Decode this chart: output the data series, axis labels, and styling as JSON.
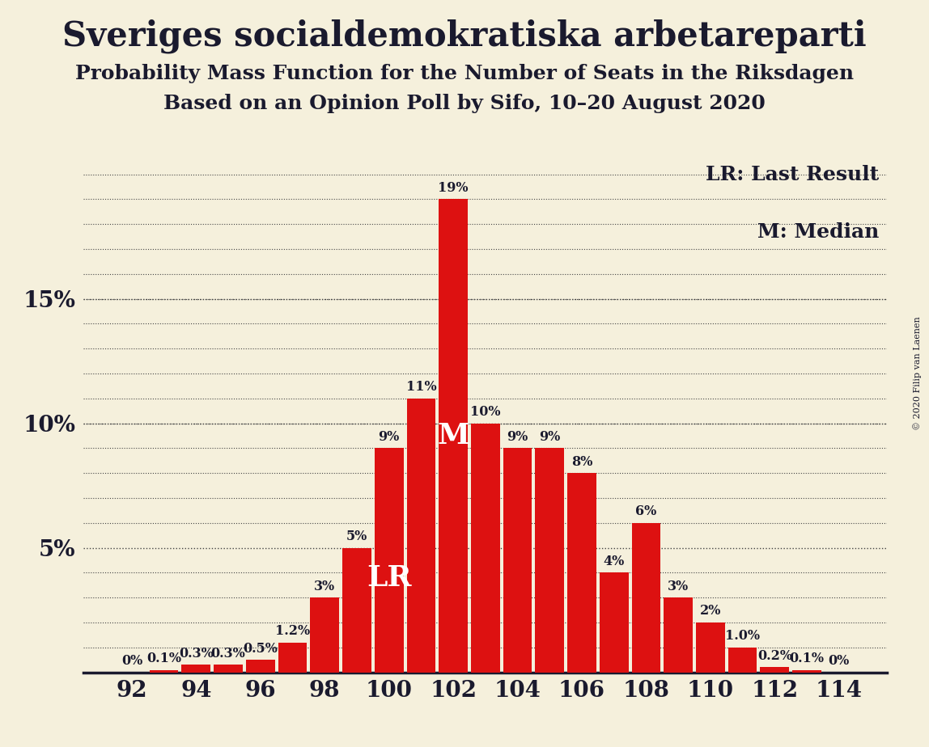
{
  "title": "Sveriges socialdemokratiska arbetareparti",
  "subtitle1": "Probability Mass Function for the Number of Seats in the Riksdagen",
  "subtitle2": "Based on an Opinion Poll by Sifo, 10–20 August 2020",
  "copyright": "© 2020 Filip van Laenen",
  "background_color": "#f5f0dc",
  "bar_color": "#dd1111",
  "text_color": "#1a1a2e",
  "seats": [
    92,
    93,
    94,
    95,
    96,
    97,
    98,
    99,
    100,
    101,
    102,
    103,
    104,
    105,
    106,
    107,
    108,
    109,
    110,
    111,
    112,
    113,
    114
  ],
  "probabilities": [
    0.0,
    0.001,
    0.003,
    0.003,
    0.005,
    0.012,
    0.03,
    0.05,
    0.09,
    0.11,
    0.19,
    0.1,
    0.09,
    0.09,
    0.08,
    0.04,
    0.06,
    0.03,
    0.02,
    0.01,
    0.002,
    0.001,
    0.0
  ],
  "bar_labels": [
    "0%",
    "0.1%",
    "0.3%",
    "0.3%",
    "0.5%",
    "1.2%",
    "3%",
    "5%",
    "9%",
    "11%",
    "19%",
    "10%",
    "9%",
    "9%",
    "8%",
    "4%",
    "6%",
    "3%",
    "2%",
    "1.0%",
    "0.2%",
    "0.1%",
    "0%"
  ],
  "last_result_seat": 100,
  "median_seat": 102,
  "xlim": [
    90.5,
    115.5
  ],
  "ylim": [
    0,
    0.21
  ],
  "yticks": [
    0.05,
    0.1,
    0.15
  ],
  "ytick_labels": [
    "5%",
    "10%",
    "15%"
  ],
  "xticks": [
    92,
    94,
    96,
    98,
    100,
    102,
    104,
    106,
    108,
    110,
    112,
    114
  ],
  "title_fontsize": 30,
  "subtitle_fontsize": 18,
  "axis_fontsize": 20,
  "bar_label_fontsize": 11.5,
  "annotation_fontsize": 22,
  "legend_fontsize": 18
}
